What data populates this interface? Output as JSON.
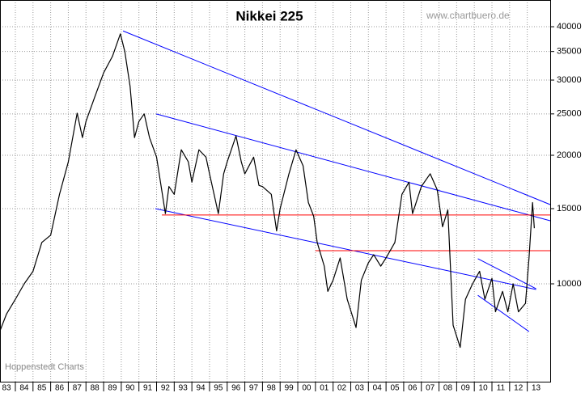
{
  "chart_data": {
    "type": "line",
    "title": "Nikkei 225",
    "watermark": "www.chartbuero.de",
    "source": "Hoppenstedt Charts",
    "log_y": true,
    "grid": true,
    "color": "#000000",
    "xlim": [
      1983.13,
      2014.3
    ],
    "ylim": [
      5900,
      46200
    ],
    "yticks": [
      10000,
      15000,
      20000,
      25000,
      30000,
      35000,
      40000
    ],
    "xticks": [
      {
        "value": 1983,
        "label": "83"
      },
      {
        "value": 1984,
        "label": "84"
      },
      {
        "value": 1985,
        "label": "85"
      },
      {
        "value": 1986,
        "label": "86"
      },
      {
        "value": 1987,
        "label": "87"
      },
      {
        "value": 1988,
        "label": "88"
      },
      {
        "value": 1989,
        "label": "89"
      },
      {
        "value": 1990,
        "label": "90"
      },
      {
        "value": 1991,
        "label": "91"
      },
      {
        "value": 1992,
        "label": "92"
      },
      {
        "value": 1993,
        "label": "93"
      },
      {
        "value": 1994,
        "label": "94"
      },
      {
        "value": 1995,
        "label": "95"
      },
      {
        "value": 1996,
        "label": "96"
      },
      {
        "value": 1997,
        "label": "97"
      },
      {
        "value": 1998,
        "label": "98"
      },
      {
        "value": 1999,
        "label": "99"
      },
      {
        "value": 2000,
        "label": "00"
      },
      {
        "value": 2001,
        "label": "01"
      },
      {
        "value": 2002,
        "label": "02"
      },
      {
        "value": 2003,
        "label": "03"
      },
      {
        "value": 2004,
        "label": "04"
      },
      {
        "value": 2005,
        "label": "05"
      },
      {
        "value": 2006,
        "label": "06"
      },
      {
        "value": 2007,
        "label": "07"
      },
      {
        "value": 2008,
        "label": "08"
      },
      {
        "value": 2009,
        "label": "09"
      },
      {
        "value": 2010,
        "label": "10"
      },
      {
        "value": 2011,
        "label": "11"
      },
      {
        "value": 2012,
        "label": "12"
      },
      {
        "value": 2013,
        "label": "13"
      }
    ],
    "x": [
      1983.15,
      1983.5,
      1984,
      1984.5,
      1985,
      1985.5,
      1986,
      1986.5,
      1987,
      1987.5,
      1987.8,
      1988,
      1988.5,
      1989,
      1989.5,
      1989.95,
      1990.2,
      1990.5,
      1990.75,
      1991,
      1991.3,
      1991.6,
      1992,
      1992.5,
      1992.7,
      1993,
      1993.4,
      1993.8,
      1994,
      1994.4,
      1994.8,
      1995,
      1995.5,
      1995.8,
      1996,
      1996.5,
      1996.8,
      1997,
      1997.5,
      1997.8,
      1998,
      1998.5,
      1998.8,
      1999,
      1999.5,
      1999.9,
      2000.3,
      2000.6,
      2000.9,
      2001.1,
      2001.5,
      2001.7,
      2002,
      2002.4,
      2002.8,
      2003.3,
      2003.6,
      2004,
      2004.3,
      2004.7,
      2005,
      2005.5,
      2005.9,
      2006.3,
      2006.5,
      2007,
      2007.5,
      2007.9,
      2008.2,
      2008.5,
      2008.8,
      2009.2,
      2009.5,
      2009.9,
      2010.3,
      2010.6,
      2011,
      2011.2,
      2011.6,
      2011.9,
      2012.2,
      2012.5,
      2012.9,
      2013.1,
      2013.3,
      2013.4
    ],
    "values": [
      7800,
      8500,
      9200,
      10000,
      10700,
      12500,
      13000,
      16200,
      19300,
      25100,
      22000,
      24000,
      27400,
      31200,
      34100,
      38500,
      35000,
      29000,
      22000,
      24000,
      25000,
      22000,
      19800,
      14600,
      16900,
      16200,
      20600,
      19300,
      17300,
      20600,
      19800,
      18100,
      14600,
      18100,
      19300,
      22200,
      19300,
      18100,
      19800,
      17000,
      16900,
      16200,
      13300,
      15000,
      18100,
      20600,
      18900,
      15500,
      14400,
      12500,
      11000,
      9600,
      10200,
      11500,
      9200,
      7900,
      10200,
      11200,
      11700,
      11000,
      11500,
      12500,
      16200,
      17300,
      14600,
      16900,
      18100,
      16600,
      13600,
      14900,
      8000,
      7100,
      9200,
      10000,
      10700,
      9200,
      10300,
      8600,
      9600,
      8600,
      10000,
      8600,
      9000,
      11500,
      15500,
      13500
    ],
    "trendlines": [
      {
        "color": "#0000ff",
        "x": [
          1990.1,
          2014.3
        ],
        "y": [
          39100,
          15330
        ]
      },
      {
        "color": "#0000ff",
        "x": [
          1991.98,
          2014.3
        ],
        "y": [
          25000,
          14050
        ]
      },
      {
        "color": "#0000ff",
        "x": [
          1991.93,
          2013.5
        ],
        "y": [
          15000,
          9700
        ]
      },
      {
        "color": "#ff0000",
        "x": [
          1992.3,
          2014.3
        ],
        "y": [
          14490,
          14490
        ]
      },
      {
        "color": "#ff0000",
        "x": [
          2001.0,
          2014.3
        ],
        "y": [
          11960,
          11960
        ]
      },
      {
        "color": "#0000ff",
        "x": [
          2010.2,
          2013.5
        ],
        "y": [
          11450,
          9740
        ]
      },
      {
        "color": "#0000ff",
        "x": [
          2010.2,
          2013.1
        ],
        "y": [
          9400,
          7730
        ]
      }
    ]
  }
}
